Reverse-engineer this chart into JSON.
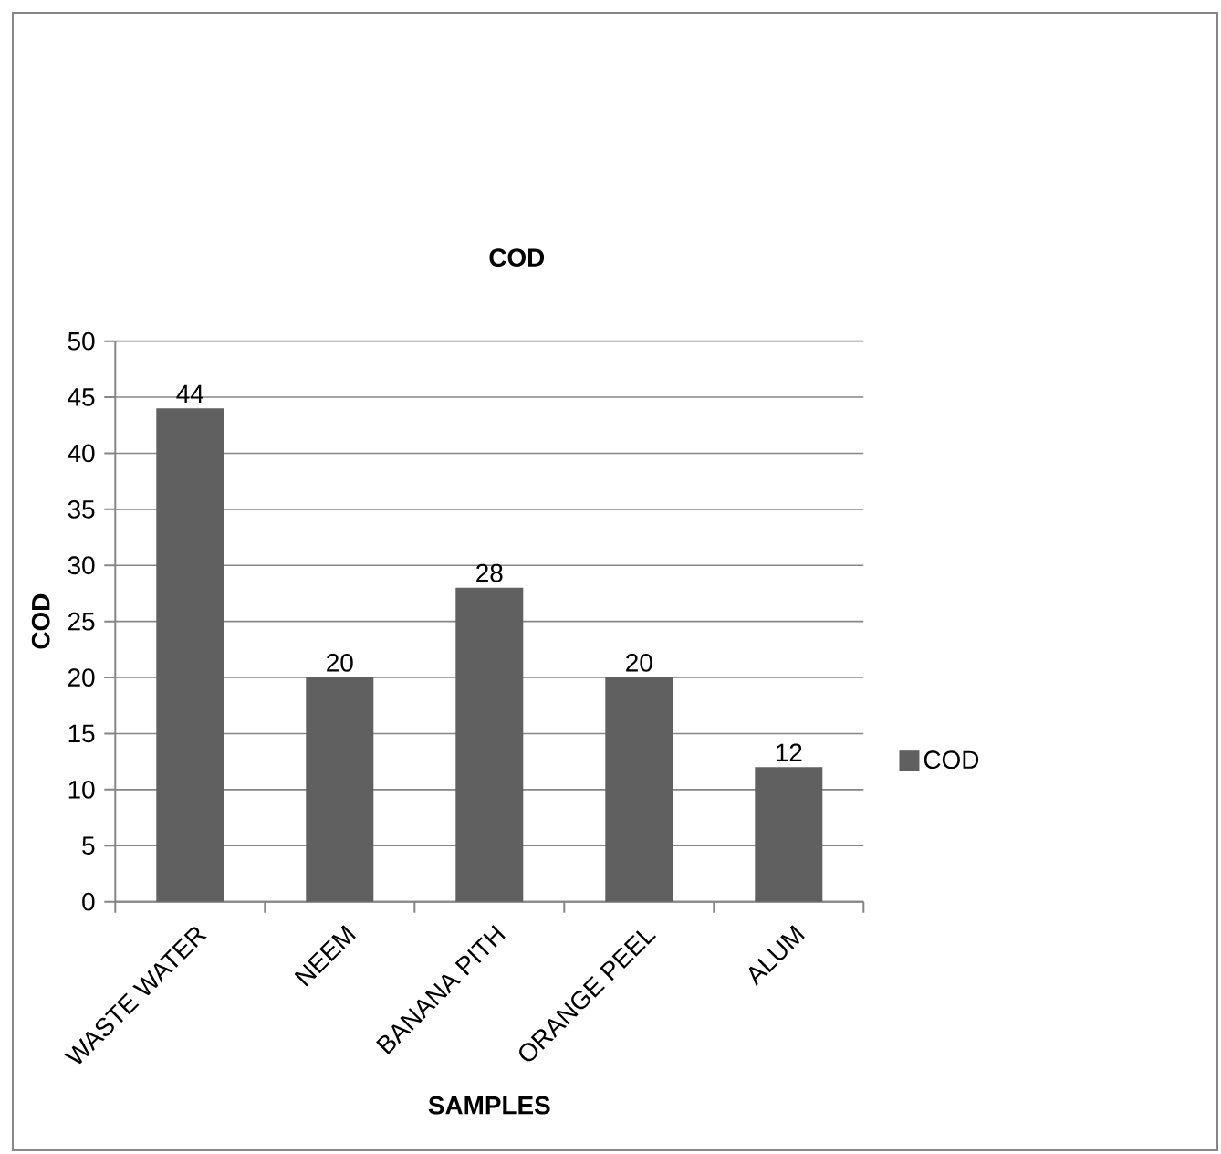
{
  "chart_data": {
    "type": "bar",
    "title": "COD",
    "xlabel": "SAMPLES",
    "ylabel": "COD",
    "categories": [
      "WASTE WATER",
      "NEEM",
      "BANANA PITH",
      "ORANGE PEEL",
      "ALUM"
    ],
    "series": [
      {
        "name": "COD",
        "color": "#606060",
        "values": [
          44,
          20,
          28,
          20,
          12
        ]
      }
    ],
    "ylim": [
      0,
      50
    ],
    "yticks": [
      0,
      5,
      10,
      15,
      20,
      25,
      30,
      35,
      40,
      45,
      50
    ],
    "grid": "y",
    "legend": "right",
    "data_labels": true
  }
}
